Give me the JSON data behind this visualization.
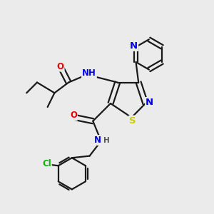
{
  "background_color": "#ebebeb",
  "atom_colors": {
    "N": "#0000ee",
    "O": "#ee0000",
    "S": "#cccc00",
    "Cl": "#00bb00",
    "C": "#1a1a1a",
    "H": "#555555"
  },
  "bond_color": "#1a1a1a",
  "bond_width": 1.6,
  "font_size_atom": 8.5,
  "figsize": [
    3.0,
    3.0
  ],
  "dpi": 100
}
